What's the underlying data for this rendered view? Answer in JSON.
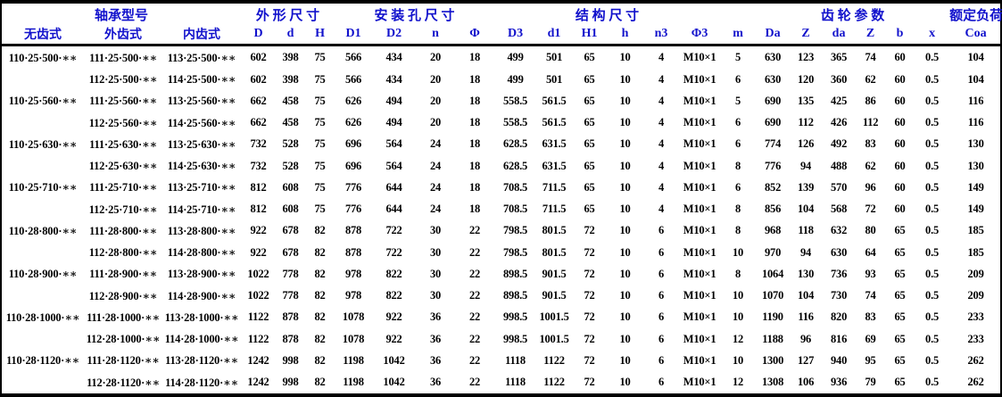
{
  "header": {
    "groups": [
      {
        "label": "轴承型号",
        "span": 3
      },
      {
        "label": "外 形 尺 寸",
        "span": 3
      },
      {
        "label": "安 装 孔 尺 寸",
        "span": 4
      },
      {
        "label": "结 构 尺 寸",
        "span": 6
      },
      {
        "label": "",
        "span": 1
      },
      {
        "label": "齿 轮 参 数",
        "span": 6
      },
      {
        "label": "额定负荷",
        "span": 1
      }
    ],
    "columns": [
      "无齿式",
      "外齿式",
      "内齿式",
      "D",
      "d",
      "H",
      "D1",
      "D2",
      "n",
      "Φ",
      "D3",
      "d1",
      "H1",
      "h",
      "n3",
      "Φ3",
      "m",
      "Da",
      "Z",
      "da",
      "Z",
      "b",
      "x",
      "Coa"
    ]
  },
  "rows": [
    [
      "110·25·500·∗∗",
      "111·25·500·∗∗",
      "113·25·500·∗∗",
      "602",
      "398",
      "75",
      "566",
      "434",
      "20",
      "18",
      "499",
      "501",
      "65",
      "10",
      "4",
      "M10×1",
      "5",
      "630",
      "123",
      "365",
      "74",
      "60",
      "0.5",
      "104"
    ],
    [
      "",
      "112·25·500·∗∗",
      "114·25·500·∗∗",
      "602",
      "398",
      "75",
      "566",
      "434",
      "20",
      "18",
      "499",
      "501",
      "65",
      "10",
      "4",
      "M10×1",
      "6",
      "630",
      "120",
      "360",
      "62",
      "60",
      "0.5",
      "104"
    ],
    [
      "110·25·560·∗∗",
      "111·25·560·∗∗",
      "113·25·560·∗∗",
      "662",
      "458",
      "75",
      "626",
      "494",
      "20",
      "18",
      "558.5",
      "561.5",
      "65",
      "10",
      "4",
      "M10×1",
      "5",
      "690",
      "135",
      "425",
      "86",
      "60",
      "0.5",
      "116"
    ],
    [
      "",
      "112·25·560·∗∗",
      "114·25·560·∗∗",
      "662",
      "458",
      "75",
      "626",
      "494",
      "20",
      "18",
      "558.5",
      "561.5",
      "65",
      "10",
      "4",
      "M10×1",
      "6",
      "690",
      "112",
      "426",
      "112",
      "60",
      "0.5",
      "116"
    ],
    [
      "110·25·630·∗∗",
      "111·25·630·∗∗",
      "113·25·630·∗∗",
      "732",
      "528",
      "75",
      "696",
      "564",
      "24",
      "18",
      "628.5",
      "631.5",
      "65",
      "10",
      "4",
      "M10×1",
      "6",
      "774",
      "126",
      "492",
      "83",
      "60",
      "0.5",
      "130"
    ],
    [
      "",
      "112·25·630·∗∗",
      "114·25·630·∗∗",
      "732",
      "528",
      "75",
      "696",
      "564",
      "24",
      "18",
      "628.5",
      "631.5",
      "65",
      "10",
      "4",
      "M10×1",
      "8",
      "776",
      "94",
      "488",
      "62",
      "60",
      "0.5",
      "130"
    ],
    [
      "110·25·710·∗∗",
      "111·25·710·∗∗",
      "113·25·710·∗∗",
      "812",
      "608",
      "75",
      "776",
      "644",
      "24",
      "18",
      "708.5",
      "711.5",
      "65",
      "10",
      "4",
      "M10×1",
      "6",
      "852",
      "139",
      "570",
      "96",
      "60",
      "0.5",
      "149"
    ],
    [
      "",
      "112·25·710·∗∗",
      "114·25·710·∗∗",
      "812",
      "608",
      "75",
      "776",
      "644",
      "24",
      "18",
      "708.5",
      "711.5",
      "65",
      "10",
      "4",
      "M10×1",
      "8",
      "856",
      "104",
      "568",
      "72",
      "60",
      "0.5",
      "149"
    ],
    [
      "110·28·800·∗∗",
      "111·28·800·∗∗",
      "113·28·800·∗∗",
      "922",
      "678",
      "82",
      "878",
      "722",
      "30",
      "22",
      "798.5",
      "801.5",
      "72",
      "10",
      "6",
      "M10×1",
      "8",
      "968",
      "118",
      "632",
      "80",
      "65",
      "0.5",
      "185"
    ],
    [
      "",
      "112·28·800·∗∗",
      "114·28·800·∗∗",
      "922",
      "678",
      "82",
      "878",
      "722",
      "30",
      "22",
      "798.5",
      "801.5",
      "72",
      "10",
      "6",
      "M10×1",
      "10",
      "970",
      "94",
      "630",
      "64",
      "65",
      "0.5",
      "185"
    ],
    [
      "110·28·900·∗∗",
      "111·28·900·∗∗",
      "113·28·900·∗∗",
      "1022",
      "778",
      "82",
      "978",
      "822",
      "30",
      "22",
      "898.5",
      "901.5",
      "72",
      "10",
      "6",
      "M10×1",
      "8",
      "1064",
      "130",
      "736",
      "93",
      "65",
      "0.5",
      "209"
    ],
    [
      "",
      "112·28·900·∗∗",
      "114·28·900·∗∗",
      "1022",
      "778",
      "82",
      "978",
      "822",
      "30",
      "22",
      "898.5",
      "901.5",
      "72",
      "10",
      "6",
      "M10×1",
      "10",
      "1070",
      "104",
      "730",
      "74",
      "65",
      "0.5",
      "209"
    ],
    [
      "110·28·1000·∗∗",
      "111·28·1000·∗∗",
      "113·28·1000·∗∗",
      "1122",
      "878",
      "82",
      "1078",
      "922",
      "36",
      "22",
      "998.5",
      "1001.5",
      "72",
      "10",
      "6",
      "M10×1",
      "10",
      "1190",
      "116",
      "820",
      "83",
      "65",
      "0.5",
      "233"
    ],
    [
      "",
      "112·28·1000·∗∗",
      "114·28·1000·∗∗",
      "1122",
      "878",
      "82",
      "1078",
      "922",
      "36",
      "22",
      "998.5",
      "1001.5",
      "72",
      "10",
      "6",
      "M10×1",
      "12",
      "1188",
      "96",
      "816",
      "69",
      "65",
      "0.5",
      "233"
    ],
    [
      "110·28·1120·∗∗",
      "111·28·1120·∗∗",
      "113·28·1120·∗∗",
      "1242",
      "998",
      "82",
      "1198",
      "1042",
      "36",
      "22",
      "1118",
      "1122",
      "72",
      "10",
      "6",
      "M10×1",
      "10",
      "1300",
      "127",
      "940",
      "95",
      "65",
      "0.5",
      "262"
    ],
    [
      "",
      "112·28·1120·∗∗",
      "114·28·1120·∗∗",
      "1242",
      "998",
      "82",
      "1198",
      "1042",
      "36",
      "22",
      "1118",
      "1122",
      "72",
      "10",
      "6",
      "M10×1",
      "12",
      "1308",
      "106",
      "936",
      "79",
      "65",
      "0.5",
      "262"
    ]
  ],
  "colors": {
    "header_text": "#1111cc",
    "body_text": "#000000",
    "border": "#000000",
    "background": "#ffffff"
  }
}
